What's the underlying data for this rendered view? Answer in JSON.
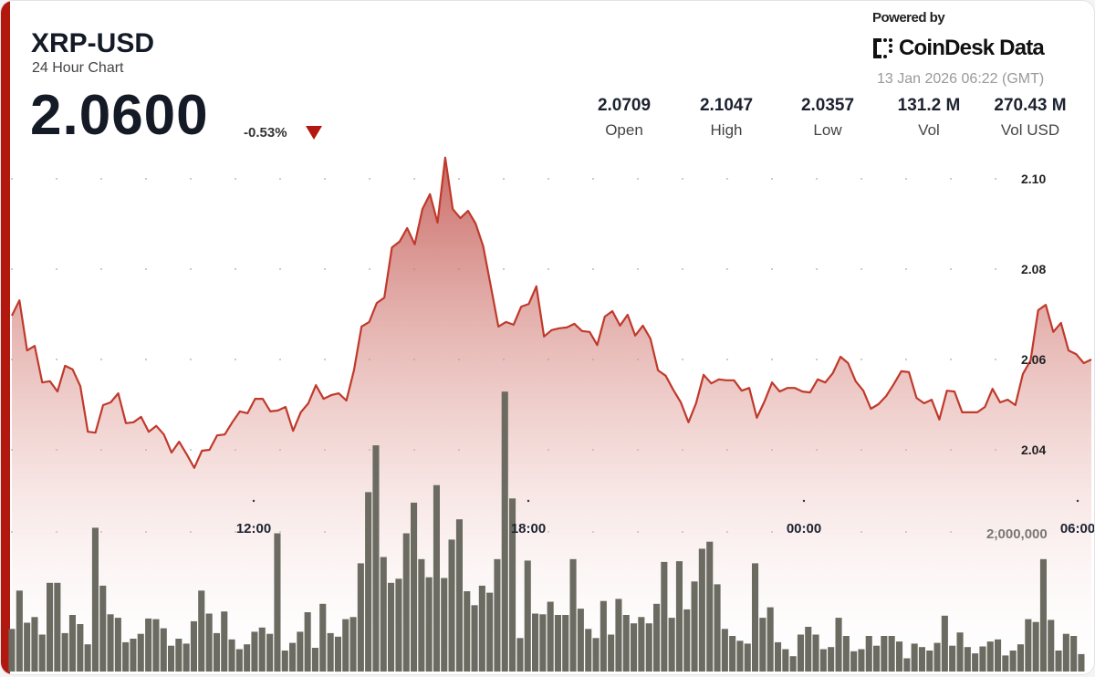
{
  "header": {
    "symbol": "XRP-USD",
    "subtitle": "24 Hour Chart",
    "price": "2.0600",
    "change": "-0.53%",
    "change_direction": "down",
    "powered_by": "Powered by",
    "brand": "CoinDesk Data",
    "timestamp": "13 Jan 2026 06:22 (GMT)"
  },
  "stats": [
    {
      "value": "2.0709",
      "label": "Open"
    },
    {
      "value": "2.1047",
      "label": "High"
    },
    {
      "value": "2.0357",
      "label": "Low"
    },
    {
      "value": "131.2 M",
      "label": "Vol"
    },
    {
      "value": "270.43 M",
      "label": "Vol USD"
    }
  ],
  "colors": {
    "accent": "#b3180e",
    "line": "#c0392b",
    "fill": "#c0504a",
    "volume": "#6b6b62"
  },
  "chart_data": {
    "type": "line",
    "price": {
      "ylim": [
        2.03,
        2.11
      ],
      "y_ticks": [
        "2.10",
        "2.08",
        "2.06",
        "2.04"
      ],
      "values": [
        2.0697,
        2.0731,
        2.062,
        2.063,
        2.0549,
        2.0552,
        2.0529,
        2.0586,
        2.0578,
        2.0541,
        2.044,
        2.0438,
        2.0499,
        2.0505,
        2.0525,
        2.0459,
        2.0461,
        2.0473,
        2.044,
        2.0453,
        2.0434,
        2.0394,
        2.0418,
        2.039,
        2.036,
        2.0398,
        2.04,
        2.0432,
        2.0434,
        2.0461,
        2.0485,
        2.0481,
        2.0513,
        2.0513,
        2.0485,
        2.0487,
        2.0495,
        2.0442,
        2.0483,
        2.0503,
        2.0543,
        2.0513,
        2.0521,
        2.0525,
        2.0509,
        2.0576,
        2.0673,
        2.0683,
        2.0725,
        2.0737,
        2.0848,
        2.0861,
        2.0891,
        2.0855,
        2.0933,
        2.0966,
        2.0903,
        2.1047,
        2.0933,
        2.0913,
        2.0929,
        2.0901,
        2.0851,
        2.0762,
        2.0673,
        2.0683,
        2.0677,
        2.0717,
        2.0723,
        2.0762,
        2.0651,
        2.0665,
        2.0669,
        2.0671,
        2.0679,
        2.0663,
        2.0661,
        2.0632,
        2.0695,
        2.0707,
        2.0675,
        2.0699,
        2.0653,
        2.0675,
        2.0646,
        2.0576,
        2.0564,
        2.0533,
        2.0505,
        2.0461,
        2.0503,
        2.0566,
        2.0547,
        2.0556,
        2.0554,
        2.0554,
        2.0531,
        2.0537,
        2.0471,
        2.0507,
        2.0549,
        2.0529,
        2.0537,
        2.0537,
        2.0529,
        2.0527,
        2.0556,
        2.0549,
        2.057,
        2.0606,
        2.0592,
        2.0552,
        2.0531,
        2.0491,
        2.0501,
        2.0519,
        2.0545,
        2.0574,
        2.0572,
        2.0515,
        2.0503,
        2.0511,
        2.0467,
        2.0531,
        2.0529,
        2.0483,
        2.0483,
        2.0483,
        2.0495,
        2.0535,
        2.0505,
        2.0511,
        2.0499,
        2.0568,
        2.0598,
        2.0709,
        2.0721,
        2.0661,
        2.0681,
        2.062,
        2.0612,
        2.0592,
        2.06
      ]
    },
    "volume": {
      "y_tick": "2,000,000",
      "values_millions": [
        0.61,
        1.16,
        0.7,
        0.78,
        0.53,
        1.27,
        1.27,
        0.55,
        0.81,
        0.68,
        0.39,
        2.06,
        1.23,
        0.82,
        0.77,
        0.42,
        0.47,
        0.54,
        0.76,
        0.75,
        0.62,
        0.37,
        0.47,
        0.4,
        0.72,
        1.16,
        0.83,
        0.55,
        0.86,
        0.46,
        0.32,
        0.39,
        0.57,
        0.63,
        0.54,
        1.98,
        0.3,
        0.41,
        0.57,
        0.85,
        0.34,
        0.97,
        0.55,
        0.5,
        0.75,
        0.78,
        1.55,
        2.57,
        3.24,
        1.64,
        1.27,
        1.33,
        1.98,
        2.42,
        1.61,
        1.35,
        2.67,
        1.34,
        1.89,
        2.18,
        1.15,
        0.95,
        1.23,
        1.13,
        1.61,
        4.01,
        2.48,
        0.48,
        1.59,
        0.83,
        0.82,
        1.0,
        0.81,
        0.81,
        1.61,
        0.9,
        0.61,
        0.48,
        1.01,
        0.53,
        1.04,
        0.81,
        0.69,
        0.78,
        0.69,
        0.97,
        1.57,
        0.77,
        1.58,
        0.89,
        1.29,
        1.76,
        1.86,
        1.25,
        0.61,
        0.51,
        0.44,
        0.4,
        1.55,
        0.77,
        0.92,
        0.42,
        0.32,
        0.22,
        0.53,
        0.64,
        0.53,
        0.32,
        0.35,
        0.77,
        0.51,
        0.29,
        0.32,
        0.51,
        0.37,
        0.51,
        0.51,
        0.43,
        0.19,
        0.4,
        0.35,
        0.3,
        0.41,
        0.8,
        0.37,
        0.56,
        0.35,
        0.26,
        0.36,
        0.43,
        0.46,
        0.23,
        0.3,
        0.39,
        0.75,
        0.71,
        1.61,
        0.74,
        0.3,
        0.54,
        0.51,
        0.25
      ]
    },
    "x_ticks": [
      "12:00",
      "18:00",
      "00:00",
      "06:00"
    ],
    "grid": "dotted horizontal",
    "legend": "none"
  }
}
